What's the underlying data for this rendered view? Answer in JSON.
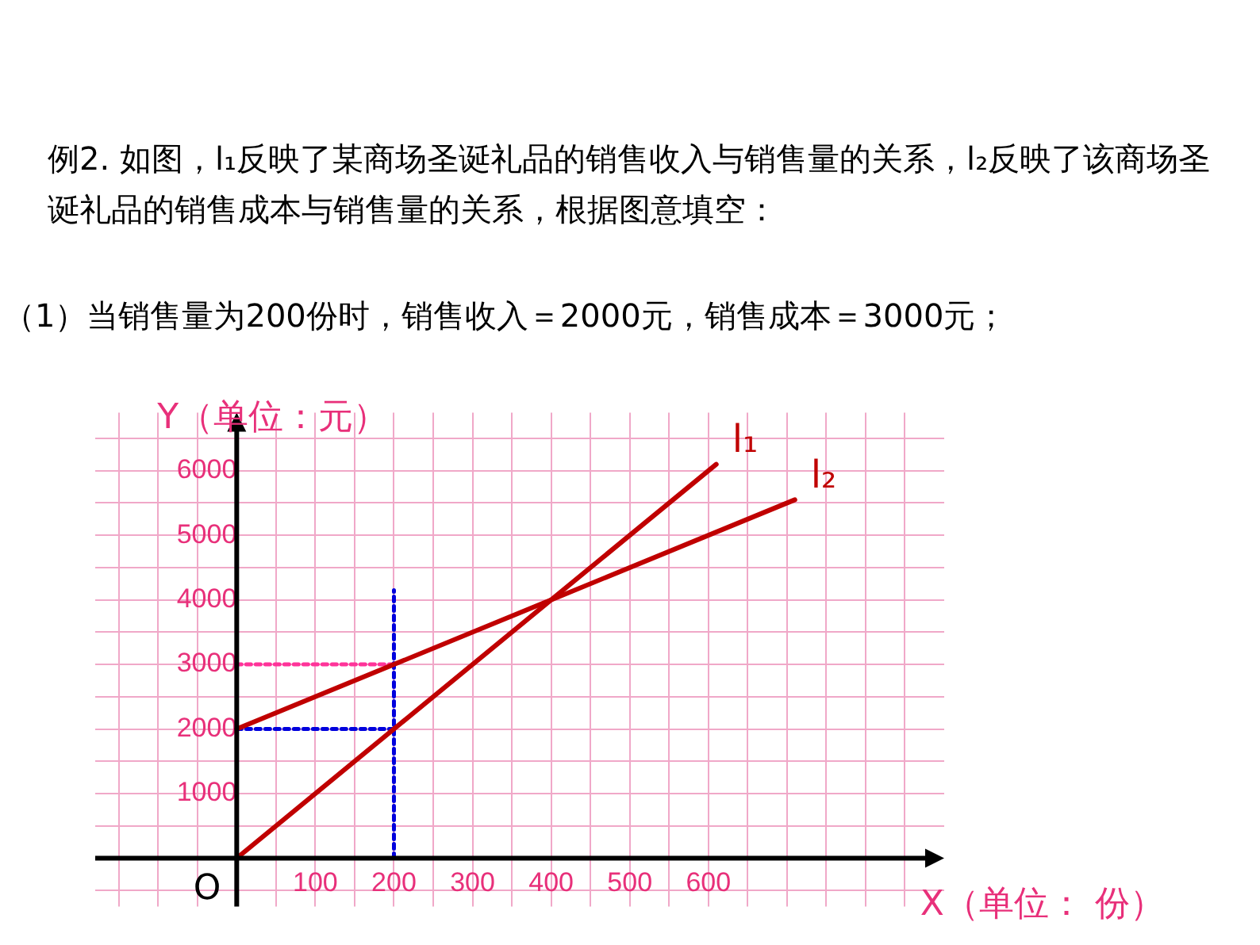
{
  "chart_data": {
    "type": "line",
    "title": "例2. 如图，l₁反映了某商场圣诞礼品的销售收入与销售量的关系，l₂反映了该商场圣诞礼品的销售成本与销售量的关系，根据图意填空：",
    "subtitle": "（1）当销售量为200份时，销售收入＝2000元，销售成本＝3000元；",
    "xlabel": "X（单位： 份）",
    "ylabel": "Y（单位：元）",
    "xlim": [
      -180,
      900
    ],
    "ylim": [
      -750,
      6900
    ],
    "xticks": [
      {
        "value": -150,
        "label": null
      },
      {
        "value": -100,
        "label": null
      },
      {
        "value": -50,
        "label": null
      },
      {
        "value": 50,
        "label": null
      },
      100,
      {
        "value": 150,
        "label": null
      },
      200,
      {
        "value": 250,
        "label": null
      },
      300,
      {
        "value": 350,
        "label": null
      },
      400,
      {
        "value": 450,
        "label": null
      },
      500,
      {
        "value": 550,
        "label": null
      },
      600,
      {
        "value": 650,
        "label": null
      },
      {
        "value": 700,
        "label": null
      },
      {
        "value": 750,
        "label": null
      },
      {
        "value": 800,
        "label": null
      },
      {
        "value": 850,
        "label": null
      }
    ],
    "yticks": [
      {
        "value": -500,
        "label": null
      },
      {
        "value": 500,
        "label": null
      },
      1000,
      {
        "value": 1500,
        "label": null
      },
      2000,
      {
        "value": 2500,
        "label": null
      },
      3000,
      {
        "value": 3500,
        "label": null
      },
      4000,
      {
        "value": 4500,
        "label": null
      },
      5000,
      {
        "value": 5500,
        "label": null
      },
      6000,
      {
        "value": 6500,
        "label": null
      }
    ],
    "grid": true,
    "line_style": "solid",
    "series": [
      {
        "name": "l₁",
        "color": "#c00000",
        "x": [
          0,
          610
        ],
        "values": [
          0,
          6100
        ]
      },
      {
        "name": "l₂",
        "color": "#c00000",
        "x": [
          0,
          710
        ],
        "values": [
          2000,
          5550
        ]
      },
      {
        "color": "#0000dd",
        "x": [
          200,
          200
        ],
        "values": [
          0,
          4150
        ],
        "line_style": "dotted"
      },
      {
        "color": "#0000dd",
        "x": [
          0,
          200
        ],
        "values": [
          2000,
          2000
        ],
        "line_style": "dotted"
      },
      {
        "color": "#ff3399",
        "x": [
          0,
          200
        ],
        "values": [
          3000,
          3000
        ],
        "line_style": "dotted"
      }
    ],
    "annotations": [
      {
        "text": "O",
        "x": 0,
        "y": 0
      }
    ]
  }
}
